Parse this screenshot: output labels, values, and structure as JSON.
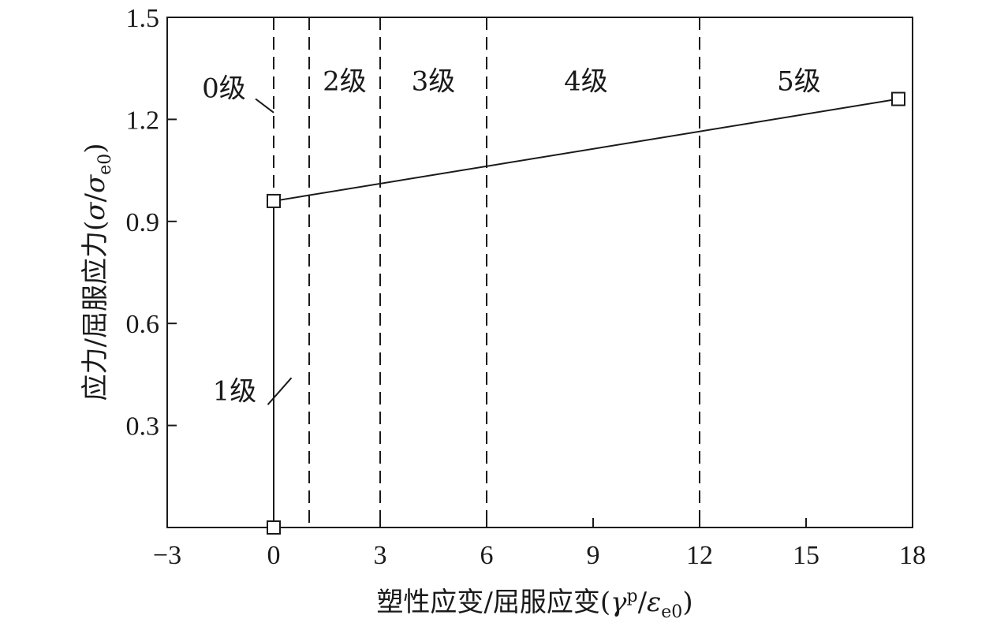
{
  "chart_data": {
    "type": "line",
    "xlabel_main": "塑性应变/屈服应变(",
    "xlabel_sym": "γ",
    "xlabel_sup": "p",
    "xlabel_slash": "/",
    "xlabel_sym2": "ε",
    "xlabel_sub": "e0",
    "xlabel_close": ")",
    "ylabel_main": "应力/屈服应力(",
    "ylabel_sym": "σ",
    "ylabel_slash": "/",
    "ylabel_sym2": "σ",
    "ylabel_sub": "e0",
    "ylabel_close": ")",
    "xlim": [
      -3,
      18
    ],
    "ylim": [
      0,
      1.5
    ],
    "xticks": [
      -3,
      0,
      3,
      6,
      9,
      12,
      15,
      18
    ],
    "xtick_labels": [
      "−3",
      "0",
      "3",
      "6",
      "9",
      "12",
      "15",
      "18"
    ],
    "yticks": [
      0.3,
      0.6,
      0.9,
      1.2,
      1.5
    ],
    "ytick_labels": [
      "0.3",
      "0.6",
      "0.9",
      "1.2",
      "1.5"
    ],
    "grid": false,
    "series": [
      {
        "x": [
          0,
          0,
          17.6
        ],
        "y": [
          0,
          0.96,
          1.26
        ],
        "marker": "square"
      }
    ],
    "stage_boundaries": [
      0,
      1,
      3,
      6,
      12
    ],
    "stage_labels": [
      {
        "text": "0级",
        "x": -1.4,
        "y": 1.265,
        "leader_to": [
          0,
          1.22
        ]
      },
      {
        "text": "1级",
        "x": -1.1,
        "y": 0.375,
        "leader_to": [
          0.5,
          0.44
        ]
      },
      {
        "text": "2级",
        "x": 2.0,
        "y": 1.285
      },
      {
        "text": "3级",
        "x": 4.5,
        "y": 1.285
      },
      {
        "text": "4级",
        "x": 8.8,
        "y": 1.285
      },
      {
        "text": "5级",
        "x": 14.8,
        "y": 1.285
      }
    ]
  }
}
